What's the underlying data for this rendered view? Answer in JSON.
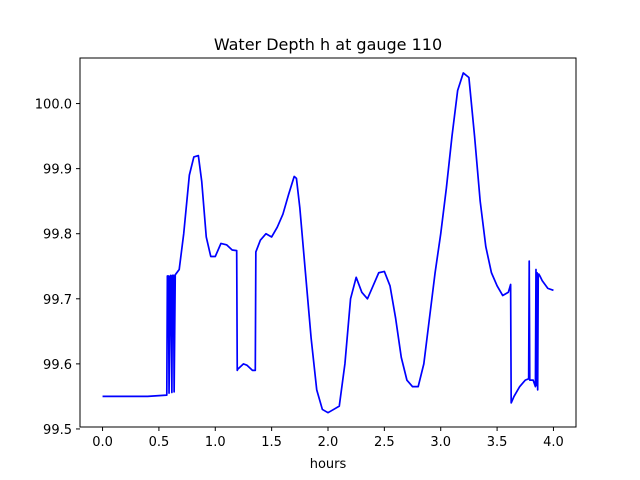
{
  "chart_data": {
    "type": "line",
    "title": "Water Depth h at gauge 110",
    "xlabel": "hours",
    "ylabel": "",
    "xlim": [
      -0.2,
      4.2
    ],
    "ylim": [
      99.503,
      100.07
    ],
    "xticks": [
      0.0,
      0.5,
      1.0,
      1.5,
      2.0,
      2.5,
      3.0,
      3.5,
      4.0
    ],
    "xtick_labels": [
      "0.0",
      "0.5",
      "1.0",
      "1.5",
      "2.0",
      "2.5",
      "3.0",
      "3.5",
      "4.0"
    ],
    "yticks": [
      99.5,
      99.6,
      99.7,
      99.8,
      99.9,
      100.0
    ],
    "ytick_labels": [
      "99.5",
      "99.6",
      "99.7",
      "99.8",
      "99.9",
      "100.0"
    ],
    "grid": false,
    "series": [
      {
        "color": "#0000ff",
        "x": [
          0.0,
          0.2,
          0.4,
          0.57,
          0.575,
          0.585,
          0.59,
          0.6,
          0.605,
          0.615,
          0.62,
          0.63,
          0.635,
          0.645,
          0.65,
          0.68,
          0.72,
          0.77,
          0.81,
          0.85,
          0.88,
          0.92,
          0.96,
          1.0,
          1.05,
          1.1,
          1.15,
          1.19,
          1.195,
          1.2,
          1.25,
          1.28,
          1.33,
          1.355,
          1.36,
          1.4,
          1.45,
          1.5,
          1.55,
          1.6,
          1.65,
          1.7,
          1.72,
          1.75,
          1.8,
          1.85,
          1.9,
          1.95,
          2.0,
          2.05,
          2.1,
          2.15,
          2.2,
          2.25,
          2.3,
          2.35,
          2.4,
          2.45,
          2.5,
          2.55,
          2.6,
          2.65,
          2.7,
          2.75,
          2.8,
          2.85,
          2.9,
          2.95,
          3.0,
          3.05,
          3.1,
          3.15,
          3.2,
          3.25,
          3.3,
          3.35,
          3.4,
          3.45,
          3.5,
          3.55,
          3.6,
          3.62,
          3.625,
          3.63,
          3.65,
          3.7,
          3.75,
          3.78,
          3.785,
          3.79,
          3.8,
          3.82,
          3.84,
          3.845,
          3.85,
          3.855,
          3.86,
          3.865,
          3.87,
          3.88,
          3.9,
          3.95,
          4.0
        ],
        "y": [
          99.55,
          99.55,
          99.55,
          99.552,
          99.735,
          99.735,
          99.555,
          99.735,
          99.736,
          99.556,
          99.736,
          99.736,
          99.557,
          99.737,
          99.738,
          99.745,
          99.8,
          99.89,
          99.918,
          99.92,
          99.88,
          99.795,
          99.765,
          99.765,
          99.785,
          99.783,
          99.775,
          99.774,
          99.59,
          99.592,
          99.6,
          99.598,
          99.59,
          99.59,
          99.772,
          99.79,
          99.8,
          99.795,
          99.81,
          99.83,
          99.86,
          99.888,
          99.885,
          99.84,
          99.74,
          99.64,
          99.56,
          99.53,
          99.525,
          99.53,
          99.535,
          99.6,
          99.7,
          99.733,
          99.71,
          99.7,
          99.72,
          99.74,
          99.742,
          99.72,
          99.67,
          99.61,
          99.575,
          99.565,
          99.565,
          99.6,
          99.67,
          99.74,
          99.8,
          99.87,
          99.95,
          100.02,
          100.047,
          100.04,
          99.95,
          99.85,
          99.78,
          99.74,
          99.72,
          99.705,
          99.71,
          99.722,
          99.54,
          99.542,
          99.55,
          99.565,
          99.575,
          99.577,
          99.758,
          99.575,
          99.575,
          99.575,
          99.565,
          99.745,
          99.567,
          99.74,
          99.56,
          99.738,
          99.738,
          99.735,
          99.728,
          99.716,
          99.713
        ]
      }
    ]
  }
}
